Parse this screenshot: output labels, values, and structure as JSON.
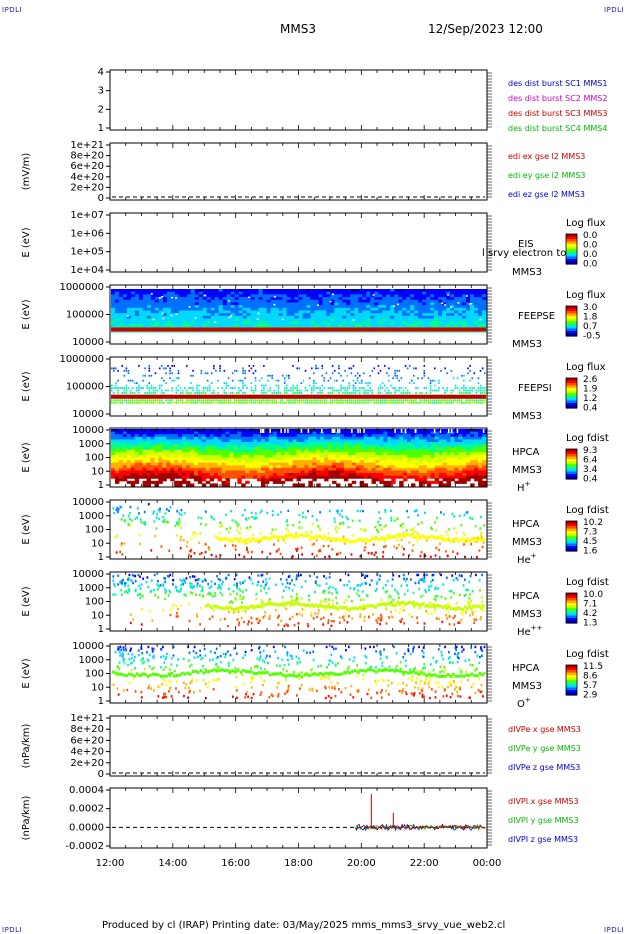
{
  "header": {
    "corner_tl": "IPDLI",
    "corner_tr": "IPDLI",
    "corner_bl": "IPDLI",
    "corner_br": "IPDLI",
    "title": "MMS3",
    "date": "12/Sep/2023 12:00"
  },
  "footer": {
    "text": "Produced by cl (IRAP)   Printing date: 03/May/2025   mms_mms3_srvy_vue_web2.cl"
  },
  "colors": {
    "rainbow": [
      "#00009a",
      "#0000ff",
      "#0070ff",
      "#00d8ff",
      "#00ff90",
      "#50ff00",
      "#c8ff00",
      "#ffff00",
      "#ffb000",
      "#ff5000",
      "#ff0000",
      "#a00000"
    ]
  },
  "chart_data": {
    "type": "heatmap",
    "x_range": [
      "12:00",
      "00:00"
    ],
    "x_ticks": [
      "12:00",
      "14:00",
      "16:00",
      "18:00",
      "20:00",
      "22:00",
      "00:00"
    ],
    "panels": [
      {
        "id": "des-dist",
        "type": "line",
        "ylabel": "",
        "y_ticks": [
          "4",
          "3",
          "2",
          "1"
        ],
        "legend": [
          {
            "text": "des dist burst SC1 MMS1",
            "color": "#0000cc"
          },
          {
            "text": "des dist burst SC2 MMS2",
            "color": "#cc00cc"
          },
          {
            "text": "des dist burst SC3 MMS3",
            "color": "#cc0000"
          },
          {
            "text": "des dist burst SC4 MMS4",
            "color": "#00bb00"
          }
        ]
      },
      {
        "id": "edi",
        "type": "line",
        "ylabel": "(mV/m)",
        "y_ticks": [
          "1e+21",
          "8e+20",
          "6e+20",
          "4e+20",
          "2e+20",
          "0"
        ],
        "legend": [
          {
            "text": "edi ex gse l2 MMS3",
            "color": "#cc0000"
          },
          {
            "text": "edi ey gse l2 MMS3",
            "color": "#00bb00"
          },
          {
            "text": "edi ez gse l2 MMS3",
            "color": "#0000cc"
          }
        ]
      },
      {
        "id": "eis",
        "type": "heatmap",
        "ylabel": "E (eV)",
        "y_ticks": [
          "1e+07",
          "1e+06",
          "1e+05",
          "1e+04"
        ],
        "label_lines": [
          "EIS",
          "MMS3"
        ],
        "overlay_text": "l srvy electron to",
        "cbar_title": "Log flux",
        "cbar_ticks": [
          "0.0",
          "0.0",
          "0.0",
          "0.0"
        ]
      },
      {
        "id": "feepse",
        "type": "heatmap",
        "ylabel": "E (eV)",
        "y_ticks": [
          "1000000",
          "100000",
          "10000"
        ],
        "label_lines": [
          "FEEPSE",
          "MMS3"
        ],
        "cbar_title": "Log flux",
        "cbar_ticks": [
          "3.0",
          "1.8",
          "0.7",
          "-0.5"
        ]
      },
      {
        "id": "feepsi",
        "type": "heatmap",
        "ylabel": "E (eV)",
        "y_ticks": [
          "1000000",
          "100000",
          "10000"
        ],
        "label_lines": [
          "FEEPSI",
          "MMS3"
        ],
        "cbar_title": "Log flux",
        "cbar_ticks": [
          "2.6",
          "1.9",
          "1.2",
          "0.4"
        ]
      },
      {
        "id": "hpca-h",
        "type": "heatmap",
        "ylabel": "E (eV)",
        "y_ticks": [
          "10000",
          "1000",
          "100",
          "10",
          "1"
        ],
        "label_lines": [
          "HPCA",
          "MMS3",
          "H+"
        ],
        "cbar_title": "Log fdist",
        "cbar_ticks": [
          "9.3",
          "6.4",
          "3.4",
          "0.4"
        ]
      },
      {
        "id": "hpca-he",
        "type": "heatmap",
        "ylabel": "E (eV)",
        "y_ticks": [
          "10000",
          "1000",
          "100",
          "10",
          "1"
        ],
        "label_lines": [
          "HPCA",
          "MMS3",
          "He+"
        ],
        "cbar_title": "Log fdist",
        "cbar_ticks": [
          "10.2",
          "7.3",
          "4.5",
          "1.6"
        ]
      },
      {
        "id": "hpca-he2",
        "type": "heatmap",
        "ylabel": "E (eV)",
        "y_ticks": [
          "10000",
          "1000",
          "100",
          "10",
          "1"
        ],
        "label_lines": [
          "HPCA",
          "MMS3",
          "He++"
        ],
        "cbar_title": "Log fdist",
        "cbar_ticks": [
          "10.0",
          "7.1",
          "4.2",
          "1.3"
        ]
      },
      {
        "id": "hpca-o",
        "type": "heatmap",
        "ylabel": "E (eV)",
        "y_ticks": [
          "10000",
          "1000",
          "100",
          "10",
          "1"
        ],
        "label_lines": [
          "HPCA",
          "MMS3",
          "O+"
        ],
        "cbar_title": "Log fdist",
        "cbar_ticks": [
          "11.5",
          "8.6",
          "5.7",
          "2.9"
        ]
      },
      {
        "id": "divpe",
        "type": "line",
        "ylabel": "(nPa/km)",
        "y_ticks": [
          "1e+21",
          "8e+20",
          "6e+20",
          "4e+20",
          "2e+20",
          "0"
        ],
        "legend": [
          {
            "text": "dIVPe x gse MMS3",
            "color": "#cc0000"
          },
          {
            "text": "dIVPe y gse MMS3",
            "color": "#00bb00"
          },
          {
            "text": "dIVPe z gse MMS3",
            "color": "#0000cc"
          }
        ]
      },
      {
        "id": "divpi",
        "type": "line",
        "ylabel": "(nPa/km)",
        "y_ticks": [
          "0.0004",
          "0.0002",
          "0.0000",
          "-0.0002"
        ],
        "legend": [
          {
            "text": "dIVPI x gse MMS3",
            "color": "#cc0000"
          },
          {
            "text": "dIVPI y gse MMS3",
            "color": "#00bb00"
          },
          {
            "text": "dIVPI z gse MMS3",
            "color": "#0000cc"
          }
        ]
      }
    ]
  }
}
